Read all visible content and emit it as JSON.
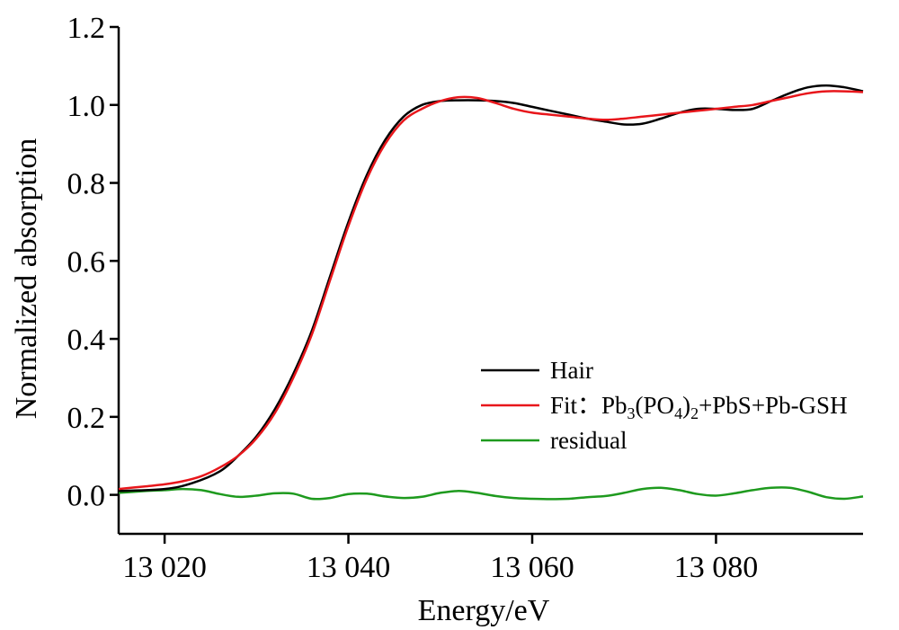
{
  "chart_data": {
    "type": "line",
    "xlabel": "Energy/eV",
    "ylabel": "Normalized absorption",
    "xlim": [
      13015,
      13096
    ],
    "ylim": [
      -0.1,
      1.2
    ],
    "x_ticks": [
      13020,
      13040,
      13060,
      13080
    ],
    "x_tick_labels": [
      "13 020",
      "13 040",
      "13 060",
      "13 080"
    ],
    "y_ticks": [
      0.0,
      0.2,
      0.4,
      0.6,
      0.8,
      1.0,
      1.2
    ],
    "y_tick_labels": [
      "0.0",
      "0.2",
      "0.4",
      "0.6",
      "0.8",
      "1.0",
      "1.2"
    ],
    "legend_position": "lower-right",
    "grid": false,
    "series": [
      {
        "name": "Hair",
        "color": "#000000",
        "x": [
          13015,
          13020,
          13023,
          13026,
          13028,
          13030,
          13032,
          13034,
          13036,
          13038,
          13040,
          13042,
          13044,
          13046,
          13048,
          13050,
          13052,
          13054,
          13056,
          13058,
          13060,
          13062,
          13064,
          13066,
          13068,
          13070,
          13072,
          13074,
          13076,
          13078,
          13080,
          13082,
          13084,
          13086,
          13088,
          13090,
          13092,
          13094,
          13096
        ],
        "y": [
          0.01,
          0.015,
          0.03,
          0.06,
          0.1,
          0.15,
          0.22,
          0.31,
          0.42,
          0.56,
          0.7,
          0.82,
          0.91,
          0.97,
          1.0,
          1.01,
          1.012,
          1.012,
          1.01,
          1.005,
          0.995,
          0.985,
          0.975,
          0.965,
          0.957,
          0.95,
          0.952,
          0.965,
          0.98,
          0.99,
          0.99,
          0.987,
          0.99,
          1.01,
          1.03,
          1.045,
          1.05,
          1.045,
          1.035
        ]
      },
      {
        "name": "Fit: Pb₃(PO₄)₂+PbS+Pb-GSH",
        "color": "#e8161b",
        "x": [
          13015,
          13018,
          13020,
          13022,
          13024,
          13026,
          13028,
          13030,
          13032,
          13034,
          13036,
          13038,
          13040,
          13042,
          13044,
          13046,
          13048,
          13050,
          13052,
          13054,
          13056,
          13058,
          13060,
          13062,
          13064,
          13066,
          13068,
          13070,
          13072,
          13074,
          13076,
          13078,
          13080,
          13082,
          13084,
          13086,
          13088,
          13090,
          13092,
          13094,
          13096
        ],
        "y": [
          0.015,
          0.022,
          0.027,
          0.035,
          0.048,
          0.07,
          0.1,
          0.145,
          0.21,
          0.3,
          0.41,
          0.55,
          0.69,
          0.81,
          0.9,
          0.96,
          0.99,
          1.01,
          1.02,
          1.018,
          1.005,
          0.99,
          0.98,
          0.975,
          0.97,
          0.965,
          0.962,
          0.965,
          0.97,
          0.975,
          0.98,
          0.985,
          0.99,
          0.995,
          1.0,
          1.01,
          1.02,
          1.03,
          1.035,
          1.035,
          1.033
        ]
      },
      {
        "name": "residual",
        "color": "#1e9a1e",
        "x": [
          13015,
          13018,
          13020,
          13022,
          13024,
          13026,
          13028,
          13030,
          13032,
          13034,
          13036,
          13038,
          13040,
          13042,
          13044,
          13046,
          13048,
          13050,
          13052,
          13054,
          13056,
          13058,
          13060,
          13062,
          13064,
          13066,
          13068,
          13070,
          13072,
          13074,
          13076,
          13078,
          13080,
          13082,
          13084,
          13086,
          13088,
          13090,
          13092,
          13094,
          13096
        ],
        "y": [
          0.005,
          0.01,
          0.012,
          0.015,
          0.012,
          0.002,
          -0.005,
          -0.002,
          0.004,
          0.003,
          -0.01,
          -0.008,
          0.002,
          0.003,
          -0.004,
          -0.008,
          -0.005,
          0.005,
          0.01,
          0.005,
          -0.003,
          -0.008,
          -0.01,
          -0.011,
          -0.01,
          -0.006,
          -0.003,
          0.005,
          0.015,
          0.018,
          0.012,
          0.002,
          -0.002,
          0.004,
          0.012,
          0.018,
          0.018,
          0.008,
          -0.006,
          -0.01,
          -0.004
        ]
      }
    ]
  },
  "legend": {
    "hair_label": "Hair",
    "fit_prefix": "Fit：Pb",
    "fit_sub1": "3",
    "fit_mid": "(PO",
    "fit_sub2": "4",
    "fit_close": ")",
    "fit_sub3": "2",
    "fit_suffix": "+PbS+Pb-GSH",
    "residual_label": "residual"
  }
}
